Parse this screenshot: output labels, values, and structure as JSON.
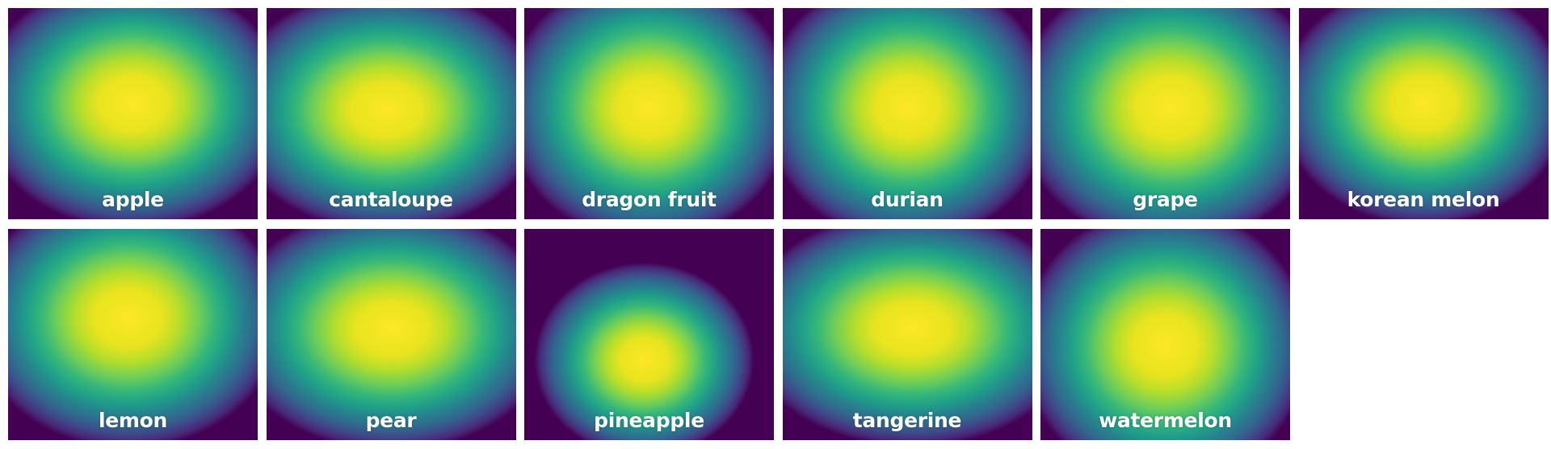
{
  "tiles": [
    {
      "label": "apple"
    },
    {
      "label": "cantaloupe"
    },
    {
      "label": "dragon fruit"
    },
    {
      "label": "durian"
    },
    {
      "label": "grape"
    },
    {
      "label": "korean melon"
    },
    {
      "label": "lemon"
    },
    {
      "label": "pear"
    },
    {
      "label": "pineapple"
    },
    {
      "label": "tangerine"
    },
    {
      "label": "watermelon"
    }
  ]
}
